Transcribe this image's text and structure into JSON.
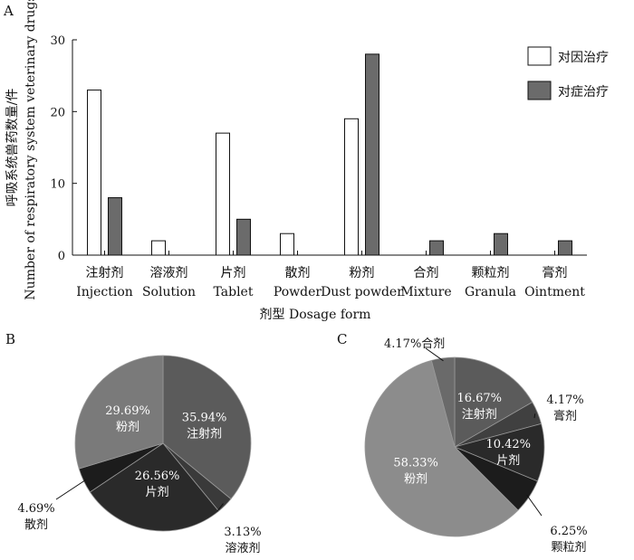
{
  "panel_labels": [
    "A",
    "B",
    "C"
  ],
  "chart_data": [
    {
      "type": "bar",
      "title": "",
      "categories": [
        [
          "注射剂",
          "Injection"
        ],
        [
          "溶液剂",
          "Solution"
        ],
        [
          "片剂",
          "Tablet"
        ],
        [
          "散剂",
          "Powder"
        ],
        [
          "粉剂",
          "Dust powder"
        ],
        [
          "合剂",
          "Mixture"
        ],
        [
          "颗粒剂",
          "Granula"
        ],
        [
          "膏剂",
          "Ointment"
        ]
      ],
      "series": [
        {
          "name": "对因治疗",
          "color": "#ffffff",
          "values": [
            23,
            2,
            17,
            3,
            19,
            0,
            0,
            0
          ]
        },
        {
          "name": "对症治疗",
          "color": "#6b6b6b",
          "values": [
            8,
            0,
            5,
            0,
            28,
            2,
            3,
            2
          ]
        }
      ],
      "ylim": [
        0,
        30
      ],
      "yticks": [
        0,
        10,
        20,
        30
      ],
      "ylabel": [
        "呼吸系统兽药数量/件",
        "Number of respiratory system veterinary drugs"
      ],
      "xlabel": "剂型 Dosage form",
      "legend_position": "top-right",
      "grid": false
    },
    {
      "type": "pie",
      "panel": "B",
      "slices": [
        {
          "pct": "35.94%",
          "name": "注射剂",
          "value": 35.94,
          "color": "#5b5b5b",
          "label_color": "#ffffff"
        },
        {
          "pct": "3.13%",
          "name": "溶液剂",
          "value": 3.13,
          "color": "#3a3a3a",
          "label_color": "#111111"
        },
        {
          "pct": "26.56%",
          "name": "片剂",
          "value": 26.56,
          "color": "#2a2a2a",
          "label_color": "#ffffff"
        },
        {
          "pct": "4.69%",
          "name": "散剂",
          "value": 4.69,
          "color": "#1c1c1c",
          "label_color": "#111111"
        },
        {
          "pct": "29.69%",
          "name": "粉剂",
          "value": 29.69,
          "color": "#7a7a7a",
          "label_color": "#ffffff"
        }
      ]
    },
    {
      "type": "pie",
      "panel": "C",
      "slices": [
        {
          "pct": "16.67%",
          "name": "注射剂",
          "value": 16.67,
          "color": "#5b5b5b",
          "label_color": "#ffffff"
        },
        {
          "pct": "4.17%",
          "name": "膏剂",
          "value": 4.17,
          "color": "#404040",
          "label_color": "#111111"
        },
        {
          "pct": "10.42%",
          "name": "片剂",
          "value": 10.42,
          "color": "#2a2a2a",
          "label_color": "#ffffff"
        },
        {
          "pct": "6.25%",
          "name": "颗粒剂",
          "value": 6.25,
          "color": "#1c1c1c",
          "label_color": "#111111"
        },
        {
          "pct": "58.33%",
          "name": "粉剂",
          "value": 58.33,
          "color": "#8c8c8c",
          "label_color": "#ffffff"
        },
        {
          "pct": "4.17%",
          "name": "合剂",
          "value": 4.17,
          "color": "#6a6a6a",
          "label_color": "#111111"
        }
      ]
    }
  ]
}
